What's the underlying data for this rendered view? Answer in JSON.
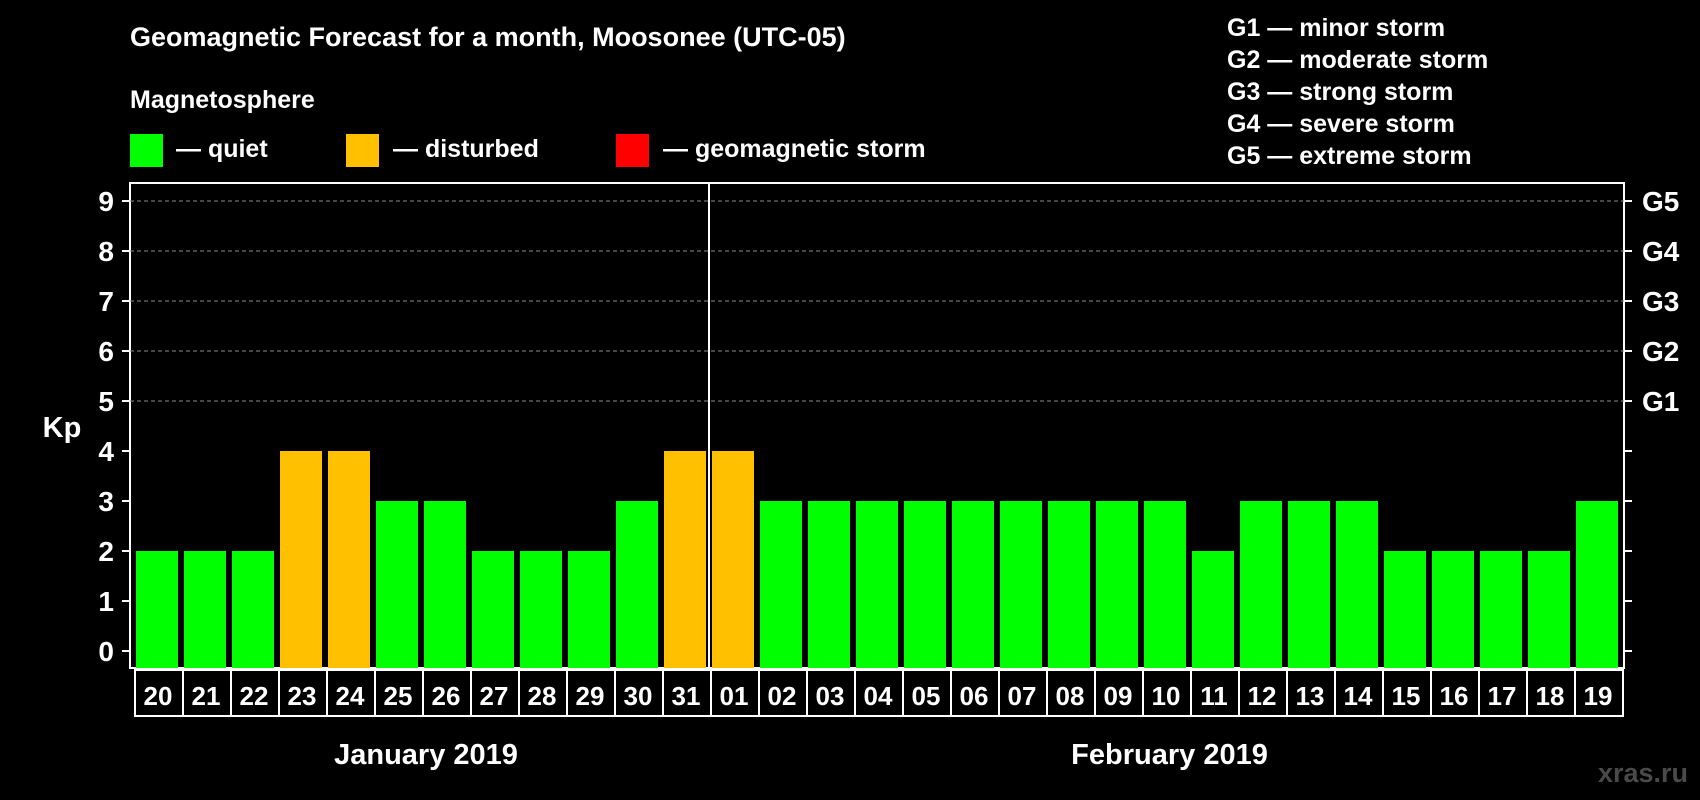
{
  "chart_data": {
    "type": "bar",
    "title": "Geomagnetic Forecast for a month, Moosonee (UTC-05)",
    "legend_title": "Magnetosphere",
    "legend": [
      {
        "label": "— quiet",
        "color": "#00ff00"
      },
      {
        "label": "— disturbed",
        "color": "#ffc000"
      },
      {
        "label": "— geomagnetic storm",
        "color": "#ff0000"
      }
    ],
    "storm_scale": [
      "G1 — minor storm",
      "G2 — moderate storm",
      "G3 — strong storm",
      "G4 — severe storm",
      "G5 — extreme storm"
    ],
    "ylabel": "Kp",
    "ylim": [
      0,
      9
    ],
    "yticks": [
      "0",
      "1",
      "2",
      "3",
      "4",
      "5",
      "6",
      "7",
      "8",
      "9"
    ],
    "right_ticks": [
      {
        "value": 5,
        "label": "G1"
      },
      {
        "value": 6,
        "label": "G2"
      },
      {
        "value": 7,
        "label": "G3"
      },
      {
        "value": 8,
        "label": "G4"
      },
      {
        "value": 9,
        "label": "G5"
      }
    ],
    "categories": [
      "20",
      "21",
      "22",
      "23",
      "24",
      "25",
      "26",
      "27",
      "28",
      "29",
      "30",
      "31",
      "01",
      "02",
      "03",
      "04",
      "05",
      "06",
      "07",
      "08",
      "09",
      "10",
      "11",
      "12",
      "13",
      "14",
      "15",
      "16",
      "17",
      "18",
      "19"
    ],
    "values": [
      2,
      2,
      2,
      4,
      4,
      3,
      3,
      2,
      2,
      2,
      3,
      4,
      4,
      3,
      3,
      3,
      3,
      3,
      3,
      3,
      3,
      3,
      2,
      3,
      3,
      3,
      2,
      2,
      2,
      2,
      3
    ],
    "month_labels": [
      "January 2019",
      "February 2019"
    ],
    "month_split_after": "31",
    "quiet_color": "#00ff00",
    "disturbed_color": "#ffc000",
    "storm_color": "#ff0000",
    "grid": true
  },
  "watermark": "xras.ru"
}
